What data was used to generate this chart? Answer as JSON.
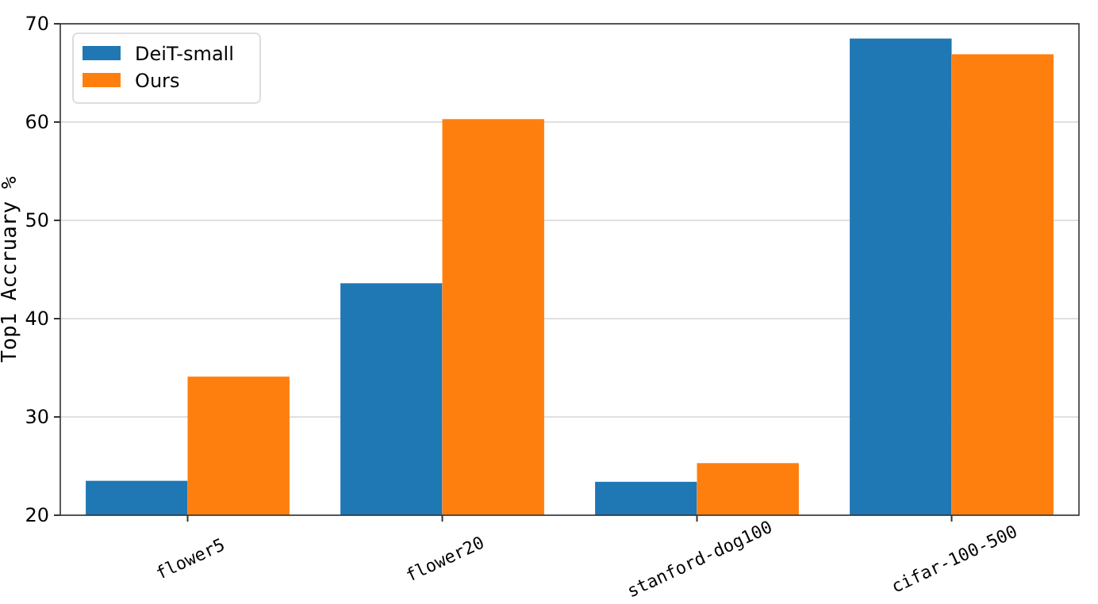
{
  "chart_data": {
    "type": "bar",
    "ylabel": "Top1 Accruary %",
    "categories": [
      "flower5",
      "flower20",
      "stanford-dog100",
      "cifar-100-500"
    ],
    "series": [
      {
        "name": "DeiT-small",
        "color": "#1f77b4",
        "values": [
          23.5,
          43.6,
          23.4,
          68.5
        ]
      },
      {
        "name": "Ours",
        "color": "#ff7f0e",
        "values": [
          34.1,
          60.3,
          25.3,
          66.9
        ]
      }
    ],
    "ylim": [
      20,
      70
    ],
    "yticks": [
      20,
      30,
      40,
      50,
      60,
      70
    ],
    "grid": "y",
    "legend": "top left"
  }
}
